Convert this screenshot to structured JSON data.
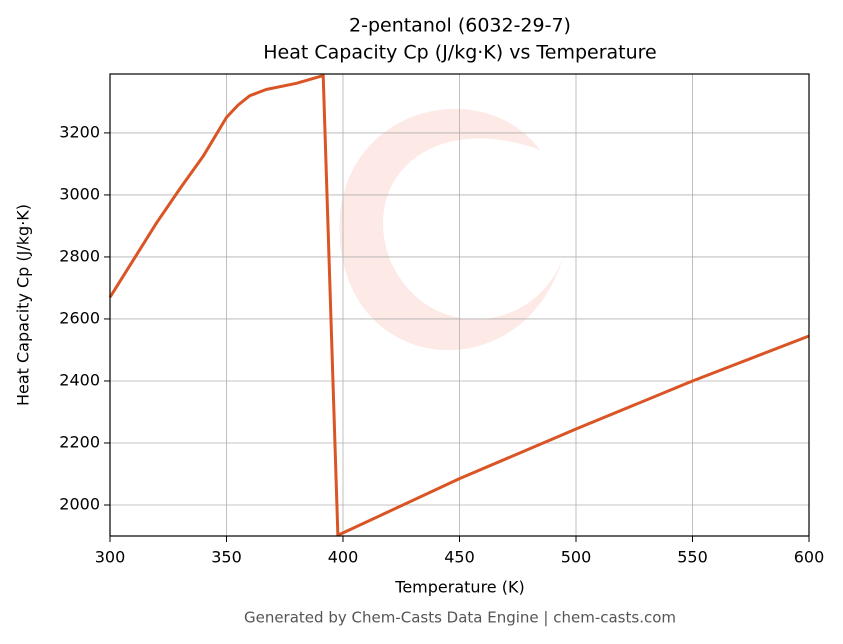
{
  "chart_data": {
    "type": "line",
    "title": "2-pentanol (6032-29-7)",
    "subtitle": "Heat Capacity Cp (J/kg·K) vs Temperature",
    "x_label": "Temperature (K)",
    "y_label": "Heat Capacity Cp (J/kg·K)",
    "footer": "Generated by Chem-Casts Data Engine | chem-casts.com",
    "x": [
      300,
      310,
      320,
      330,
      340,
      350,
      355,
      360,
      367,
      380,
      391.5,
      397.8,
      400,
      450,
      500,
      550,
      600
    ],
    "series": [
      {
        "name": "Cp",
        "color": "#d95525",
        "values": [
          2670,
          2790,
          2910,
          3020,
          3125,
          3250,
          3290,
          3320,
          3340,
          3360,
          3385,
          1903,
          1910,
          2085,
          2245,
          2400,
          2545
        ]
      }
    ],
    "xlim": [
      300,
      600
    ],
    "xticks": [
      300,
      350,
      400,
      450,
      500,
      550,
      600
    ],
    "ylim": [
      1900,
      3390
    ],
    "yticks": [
      2000,
      2200,
      2400,
      2600,
      2800,
      3000,
      3200
    ],
    "grid": true
  }
}
